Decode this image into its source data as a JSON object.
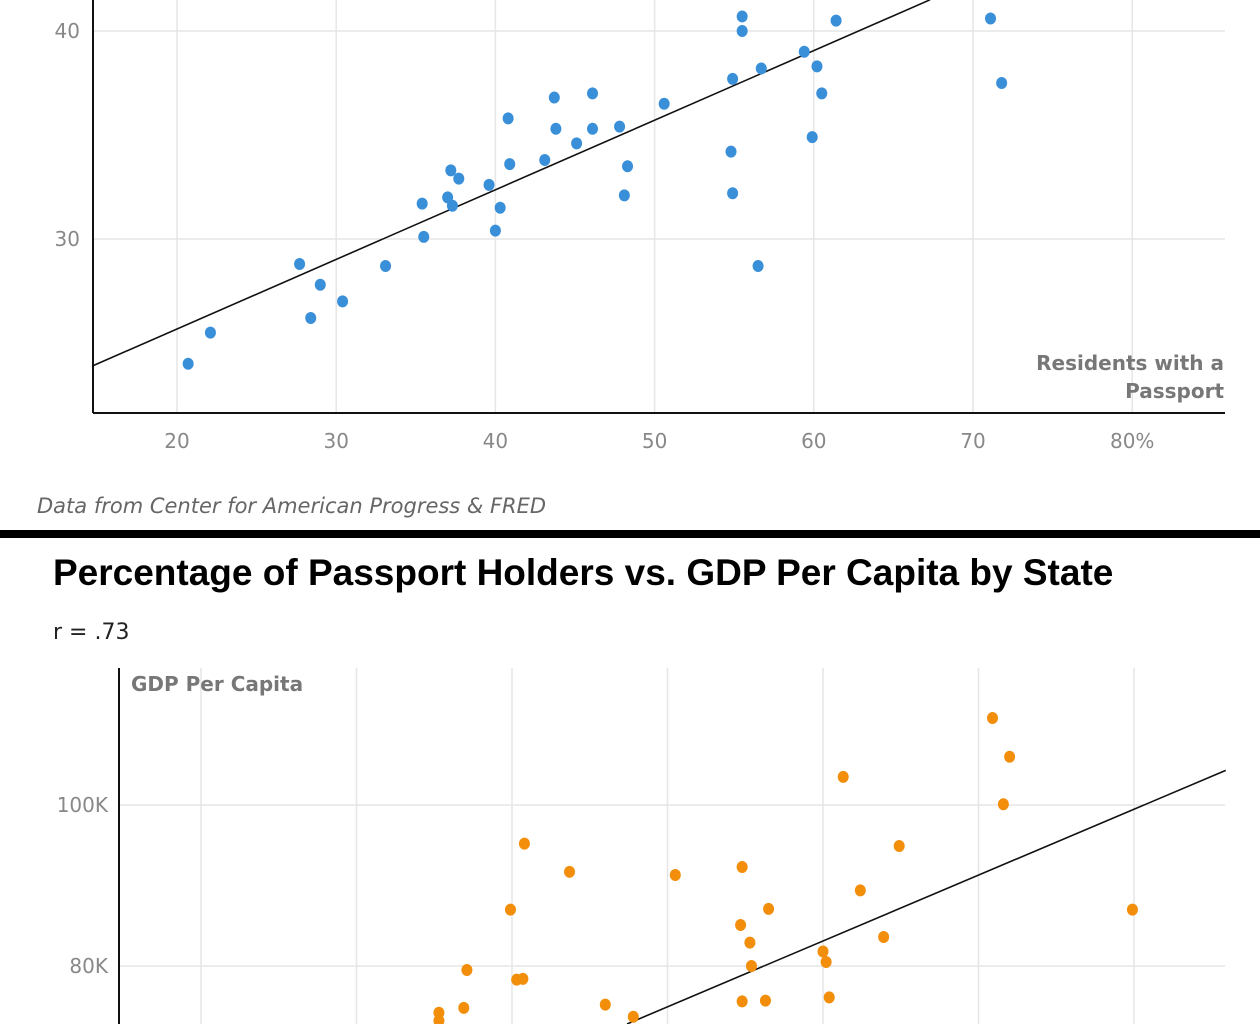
{
  "source_note": "Data from Center for American Progress & FRED",
  "chart_data": [
    {
      "type": "scatter",
      "title": "",
      "xlabel": "Residents with a Passport",
      "ylabel": "",
      "xlim": [
        14.7,
        85.9
      ],
      "ylim": [
        21.6,
        41.5
      ],
      "x_ticks": [
        {
          "value": 20,
          "label": "20"
        },
        {
          "value": 30,
          "label": "30"
        },
        {
          "value": 40,
          "label": "40"
        },
        {
          "value": 50,
          "label": "50"
        },
        {
          "value": 60,
          "label": "60"
        },
        {
          "value": 70,
          "label": "70"
        },
        {
          "value": 80,
          "label": "80%"
        }
      ],
      "y_ticks": [
        {
          "value": 30,
          "label": "30"
        },
        {
          "value": 40,
          "label": "40"
        }
      ],
      "grid": true,
      "color": "#3a8fd9",
      "trendline": {
        "x": [
          14.7,
          67.3
        ],
        "y": [
          23.9,
          41.5
        ]
      },
      "points": [
        [
          20.7,
          24.0
        ],
        [
          22.1,
          25.5
        ],
        [
          27.7,
          28.8
        ],
        [
          29.0,
          27.8
        ],
        [
          28.4,
          26.2
        ],
        [
          30.4,
          27.0
        ],
        [
          33.1,
          28.7
        ],
        [
          35.4,
          31.7
        ],
        [
          35.5,
          30.1
        ],
        [
          37.0,
          32.0
        ],
        [
          37.2,
          33.3
        ],
        [
          37.7,
          32.9
        ],
        [
          37.3,
          31.6
        ],
        [
          39.6,
          32.6
        ],
        [
          40.0,
          30.4
        ],
        [
          40.3,
          31.5
        ],
        [
          40.8,
          35.8
        ],
        [
          40.9,
          33.6
        ],
        [
          43.1,
          33.8
        ],
        [
          43.7,
          36.8
        ],
        [
          43.8,
          35.3
        ],
        [
          45.1,
          34.6
        ],
        [
          46.1,
          37.0
        ],
        [
          46.1,
          35.3
        ],
        [
          47.8,
          35.4
        ],
        [
          48.1,
          32.1
        ],
        [
          48.3,
          33.5
        ],
        [
          50.6,
          36.5
        ],
        [
          54.9,
          37.7
        ],
        [
          54.8,
          34.2
        ],
        [
          54.9,
          32.2
        ],
        [
          55.5,
          40.7
        ],
        [
          55.5,
          40.0
        ],
        [
          56.5,
          28.7
        ],
        [
          56.7,
          38.2
        ],
        [
          59.4,
          39.0
        ],
        [
          59.9,
          34.9
        ],
        [
          60.2,
          38.3
        ],
        [
          60.5,
          37.0
        ],
        [
          61.4,
          40.5
        ],
        [
          71.1,
          40.6
        ],
        [
          71.8,
          37.5
        ]
      ]
    },
    {
      "type": "scatter",
      "title": "Percentage of Passport Holders vs. GDP Per Capita by State",
      "subtitle": "r = .73",
      "xlabel": "",
      "ylabel": "GDP Per Capita",
      "xlim": [
        14.7,
        85.9
      ],
      "ylim": [
        73,
        117
      ],
      "x_ticks": [
        {
          "value": 20
        },
        {
          "value": 30
        },
        {
          "value": 40
        },
        {
          "value": 50
        },
        {
          "value": 60
        },
        {
          "value": 70
        },
        {
          "value": 80
        }
      ],
      "y_ticks": [
        {
          "value": 80,
          "label": "80K"
        },
        {
          "value": 100,
          "label": "100K"
        }
      ],
      "grid": true,
      "color": "#f28e0a",
      "trendline": {
        "x": [
          47.4,
          85.9
        ],
        "y": [
          72.8,
          104.3
        ]
      },
      "points": [
        [
          70.9,
          110.8
        ],
        [
          72.0,
          106.0
        ],
        [
          71.6,
          100.1
        ],
        [
          61.3,
          103.5
        ],
        [
          40.8,
          95.2
        ],
        [
          64.9,
          94.9
        ],
        [
          43.7,
          91.7
        ],
        [
          50.5,
          91.3
        ],
        [
          54.8,
          92.3
        ],
        [
          39.9,
          87.0
        ],
        [
          62.4,
          89.4
        ],
        [
          56.5,
          87.1
        ],
        [
          54.7,
          85.1
        ],
        [
          79.9,
          87.0
        ],
        [
          55.3,
          82.9
        ],
        [
          63.9,
          83.6
        ],
        [
          60.0,
          81.8
        ],
        [
          60.2,
          80.5
        ],
        [
          55.4,
          80.0
        ],
        [
          37.1,
          79.5
        ],
        [
          40.3,
          78.3
        ],
        [
          40.7,
          78.4
        ],
        [
          60.4,
          76.1
        ],
        [
          54.8,
          75.6
        ],
        [
          56.3,
          75.7
        ],
        [
          46.0,
          75.2
        ],
        [
          35.3,
          74.2
        ],
        [
          36.9,
          74.8
        ],
        [
          47.8,
          73.7
        ],
        [
          35.3,
          73.2
        ]
      ]
    }
  ]
}
